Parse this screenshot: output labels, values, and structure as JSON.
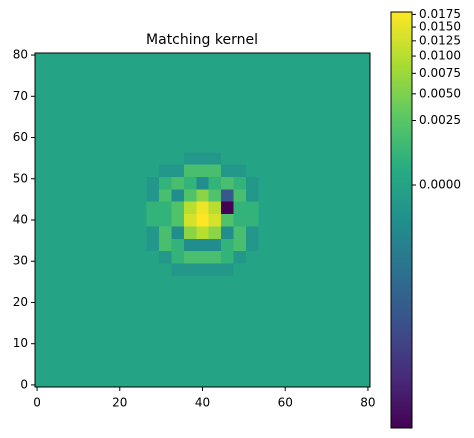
{
  "chart_data": {
    "type": "heatmap",
    "title": "Matching kernel",
    "xlim": [
      -0.5,
      80.5
    ],
    "ylim": [
      -0.5,
      80.5
    ],
    "xticks": [
      0,
      20,
      40,
      60,
      80
    ],
    "yticks": [
      0,
      10,
      20,
      30,
      40,
      50,
      60,
      70,
      80
    ],
    "z": [
      [
        0,
        0,
        0,
        0,
        0,
        0,
        0,
        0,
        0,
        0,
        0,
        0,
        0,
        0,
        0,
        0,
        0,
        0,
        0,
        0,
        0,
        0,
        0,
        0,
        0,
        0,
        0
      ],
      [
        0,
        0,
        0,
        0,
        0,
        0,
        0,
        0,
        0,
        0,
        0,
        0,
        0,
        0,
        0,
        0,
        0,
        0,
        0,
        0,
        0,
        0,
        0,
        0,
        0,
        0,
        0
      ],
      [
        0,
        0,
        0,
        0,
        0,
        0,
        0,
        0,
        0,
        0,
        0,
        0,
        0,
        0,
        0,
        0,
        0,
        0,
        0,
        0,
        0,
        0,
        0,
        0,
        0,
        0,
        0
      ],
      [
        0,
        0,
        0,
        0,
        0,
        0,
        0,
        0,
        0,
        0,
        0,
        0,
        0,
        0,
        0,
        0,
        0,
        0,
        0,
        0,
        0,
        0,
        0,
        0,
        0,
        0,
        0
      ],
      [
        0,
        0,
        0,
        0,
        0,
        0,
        0,
        0,
        0,
        0,
        0,
        0,
        0,
        0,
        0,
        0,
        0,
        0,
        0,
        0,
        0,
        0,
        0,
        0,
        0,
        0,
        0
      ],
      [
        0,
        0,
        0,
        0,
        0,
        0,
        0,
        0,
        0,
        0,
        0,
        0,
        0,
        0,
        0,
        0,
        0,
        0,
        0,
        0,
        0,
        0,
        0,
        0,
        0,
        0,
        0
      ],
      [
        0,
        0,
        0,
        0,
        0,
        0,
        0,
        0,
        0,
        0,
        0,
        0,
        0,
        0,
        0,
        0,
        0,
        0,
        0,
        0,
        0,
        0,
        0,
        0,
        0,
        0,
        0
      ],
      [
        0,
        0,
        0,
        0,
        0,
        0,
        0,
        0,
        0,
        0,
        0,
        0,
        0,
        0,
        0,
        0,
        0,
        0,
        0,
        0,
        0,
        0,
        0,
        0,
        0,
        0,
        0
      ],
      [
        0,
        0,
        0,
        0,
        0,
        0,
        0,
        0,
        0,
        0,
        0,
        0,
        0,
        0,
        0,
        0,
        0,
        0,
        0,
        0,
        0,
        0,
        0,
        0,
        0,
        0,
        0
      ],
      [
        0,
        0,
        0,
        0,
        0,
        0,
        0,
        0,
        0,
        0,
        0,
        -0.0003,
        -0.0003,
        -0.0003,
        -0.0003,
        -0.0003,
        0,
        0,
        0,
        0,
        0,
        0,
        0,
        0,
        0,
        0,
        0
      ],
      [
        0,
        0,
        0,
        0,
        0,
        0,
        0,
        0,
        0,
        0,
        -0.0003,
        0.0005,
        0.0015,
        0.0015,
        0.0015,
        0.0005,
        -0.0003,
        0,
        0,
        0,
        0,
        0,
        0,
        0,
        0,
        0,
        0
      ],
      [
        0,
        0,
        0,
        0,
        0,
        0,
        0,
        0,
        0,
        -0.0003,
        0.0015,
        0.0005,
        -0.001,
        -0.001,
        -0.001,
        0.0005,
        0.0015,
        -0.0003,
        0,
        0,
        0,
        0,
        0,
        0,
        0,
        0,
        0
      ],
      [
        0,
        0,
        0,
        0,
        0,
        0,
        0,
        0,
        0,
        -0.0003,
        0.0015,
        -0.001,
        0.006,
        0.01,
        0.006,
        -0.001,
        0.0015,
        -0.0003,
        0,
        0,
        0,
        0,
        0,
        0,
        0,
        0,
        0
      ],
      [
        0,
        0,
        0,
        0,
        0,
        0,
        0,
        0,
        0,
        0.0005,
        0.0005,
        0.002,
        0.013,
        0.018,
        0.013,
        0.002,
        0.0005,
        0.0005,
        0,
        0,
        0,
        0,
        0,
        0,
        0,
        0,
        0
      ],
      [
        0,
        0,
        0,
        0,
        0,
        0,
        0,
        0,
        0,
        0.0005,
        0.0005,
        0.002,
        0.01,
        0.016,
        0.01,
        -0.035,
        0.0005,
        0.0005,
        0,
        0,
        0,
        0,
        0,
        0,
        0,
        0,
        0
      ],
      [
        0,
        0,
        0,
        0,
        0,
        0,
        0,
        0,
        0,
        -0.0003,
        0.0015,
        -0.001,
        0.002,
        0.006,
        0.002,
        -0.01,
        0.0015,
        -0.0003,
        0,
        0,
        0,
        0,
        0,
        0,
        0,
        0,
        0
      ],
      [
        0,
        0,
        0,
        0,
        0,
        0,
        0,
        0,
        0,
        -0.0003,
        0.0005,
        0.0015,
        0.0005,
        -0.001,
        0.0005,
        0.0015,
        0.0005,
        -0.0003,
        0,
        0,
        0,
        0,
        0,
        0,
        0,
        0,
        0
      ],
      [
        0,
        0,
        0,
        0,
        0,
        0,
        0,
        0,
        0,
        0,
        -0.0003,
        -0.0003,
        0.0015,
        0.0015,
        0.0015,
        -0.0003,
        -0.0003,
        0,
        0,
        0,
        0,
        0,
        0,
        0,
        0,
        0,
        0
      ],
      [
        0,
        0,
        0,
        0,
        0,
        0,
        0,
        0,
        0,
        0,
        0,
        0,
        -0.0003,
        -0.0003,
        -0.0003,
        0,
        0,
        0,
        0,
        0,
        0,
        0,
        0,
        0,
        0,
        0,
        0
      ],
      [
        0,
        0,
        0,
        0,
        0,
        0,
        0,
        0,
        0,
        0,
        0,
        0,
        0,
        0,
        0,
        0,
        0,
        0,
        0,
        0,
        0,
        0,
        0,
        0,
        0,
        0,
        0
      ],
      [
        0,
        0,
        0,
        0,
        0,
        0,
        0,
        0,
        0,
        0,
        0,
        0,
        0,
        0,
        0,
        0,
        0,
        0,
        0,
        0,
        0,
        0,
        0,
        0,
        0,
        0,
        0
      ],
      [
        0,
        0,
        0,
        0,
        0,
        0,
        0,
        0,
        0,
        0,
        0,
        0,
        0,
        0,
        0,
        0,
        0,
        0,
        0,
        0,
        0,
        0,
        0,
        0,
        0,
        0,
        0
      ],
      [
        0,
        0,
        0,
        0,
        0,
        0,
        0,
        0,
        0,
        0,
        0,
        0,
        0,
        0,
        0,
        0,
        0,
        0,
        0,
        0,
        0,
        0,
        0,
        0,
        0,
        0,
        0
      ],
      [
        0,
        0,
        0,
        0,
        0,
        0,
        0,
        0,
        0,
        0,
        0,
        0,
        0,
        0,
        0,
        0,
        0,
        0,
        0,
        0,
        0,
        0,
        0,
        0,
        0,
        0,
        0
      ],
      [
        0,
        0,
        0,
        0,
        0,
        0,
        0,
        0,
        0,
        0,
        0,
        0,
        0,
        0,
        0,
        0,
        0,
        0,
        0,
        0,
        0,
        0,
        0,
        0,
        0,
        0,
        0
      ],
      [
        0,
        0,
        0,
        0,
        0,
        0,
        0,
        0,
        0,
        0,
        0,
        0,
        0,
        0,
        0,
        0,
        0,
        0,
        0,
        0,
        0,
        0,
        0,
        0,
        0,
        0,
        0
      ],
      [
        0,
        0,
        0,
        0,
        0,
        0,
        0,
        0,
        0,
        0,
        0,
        0,
        0,
        0,
        0,
        0,
        0,
        0,
        0,
        0,
        0,
        0,
        0,
        0,
        0,
        0,
        0
      ]
    ],
    "colorbar": {
      "lim": [
        -0.0355,
        0.018
      ],
      "scale": "sqrt",
      "colormap": "viridis",
      "ticks": [
        {
          "value": 0.0175,
          "label": "0.0175"
        },
        {
          "value": 0.015,
          "label": "0.0150"
        },
        {
          "value": 0.0125,
          "label": "0.0125"
        },
        {
          "value": 0.01,
          "label": "0.0100"
        },
        {
          "value": 0.0075,
          "label": "0.0075"
        },
        {
          "value": 0.005,
          "label": "0.0050"
        },
        {
          "value": 0.0025,
          "label": "0.0025"
        },
        {
          "value": 0,
          "label": "0.0000"
        }
      ]
    }
  }
}
